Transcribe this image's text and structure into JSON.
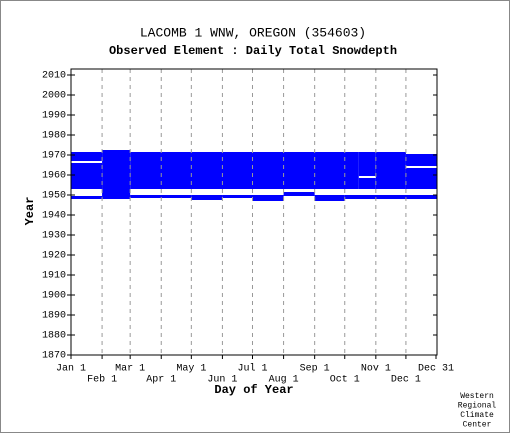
{
  "chart_data": {
    "type": "coverage",
    "title": "LACOMB 1 WNW, OREGON   (354603)",
    "subtitle": "Observed Element : Daily Total Snowdepth",
    "x_label": "Day of Year",
    "y_label": "Year",
    "credit": [
      "Western",
      "Regional",
      "Climate",
      "Center"
    ],
    "color": "#0000ff",
    "grid": true,
    "xlim": [
      1,
      366
    ],
    "xticks": [
      {
        "value": 1,
        "label": "Jan 1"
      },
      {
        "value": 32,
        "label": "Feb 1"
      },
      {
        "value": 60,
        "label": "Mar 1"
      },
      {
        "value": 91,
        "label": "Apr 1"
      },
      {
        "value": 121,
        "label": "May 1"
      },
      {
        "value": 152,
        "label": "Jun 1"
      },
      {
        "value": 182,
        "label": "Jul 1"
      },
      {
        "value": 213,
        "label": "Aug 1"
      },
      {
        "value": 244,
        "label": "Sep 1"
      },
      {
        "value": 274,
        "label": "Oct 1"
      },
      {
        "value": 305,
        "label": "Nov 1"
      },
      {
        "value": 335,
        "label": "Dec 1"
      },
      {
        "value": 365,
        "label": "Dec 31"
      }
    ],
    "ylim": [
      1870,
      2013
    ],
    "yticks": [
      1870,
      1880,
      1890,
      1900,
      1910,
      1920,
      1930,
      1940,
      1950,
      1960,
      1970,
      1980,
      1990,
      2000,
      2010
    ],
    "blocks": [
      {
        "x": [
          1,
          32
        ],
        "y": [
          1953,
          1966
        ]
      },
      {
        "x": [
          1,
          32
        ],
        "y": [
          1967,
          1971.5
        ]
      },
      {
        "x": [
          1,
          32
        ],
        "y": [
          1948,
          1949.5
        ]
      },
      {
        "x": [
          32,
          60
        ],
        "y": [
          1948,
          1972.5
        ]
      },
      {
        "x": [
          60,
          288
        ],
        "y": [
          1953,
          1971.5
        ]
      },
      {
        "x": [
          288,
          305
        ],
        "y": [
          1953,
          1958.5
        ]
      },
      {
        "x": [
          288,
          305
        ],
        "y": [
          1959.5,
          1971.5
        ]
      },
      {
        "x": [
          305,
          335
        ],
        "y": [
          1953,
          1971.5
        ]
      },
      {
        "x": [
          335,
          366
        ],
        "y": [
          1953,
          1963.5
        ]
      },
      {
        "x": [
          335,
          366
        ],
        "y": [
          1964.5,
          1970.5
        ]
      },
      {
        "x": [
          60,
          121
        ],
        "y": [
          1948.5,
          1950
        ]
      },
      {
        "x": [
          121,
          152
        ],
        "y": [
          1947.5,
          1950
        ]
      },
      {
        "x": [
          152,
          182
        ],
        "y": [
          1948.5,
          1950
        ]
      },
      {
        "x": [
          182,
          213
        ],
        "y": [
          1947,
          1950
        ]
      },
      {
        "x": [
          213,
          244
        ],
        "y": [
          1949.5,
          1951.5
        ]
      },
      {
        "x": [
          244,
          274
        ],
        "y": [
          1947,
          1950
        ]
      },
      {
        "x": [
          274,
          366
        ],
        "y": [
          1948,
          1950
        ]
      }
    ]
  }
}
